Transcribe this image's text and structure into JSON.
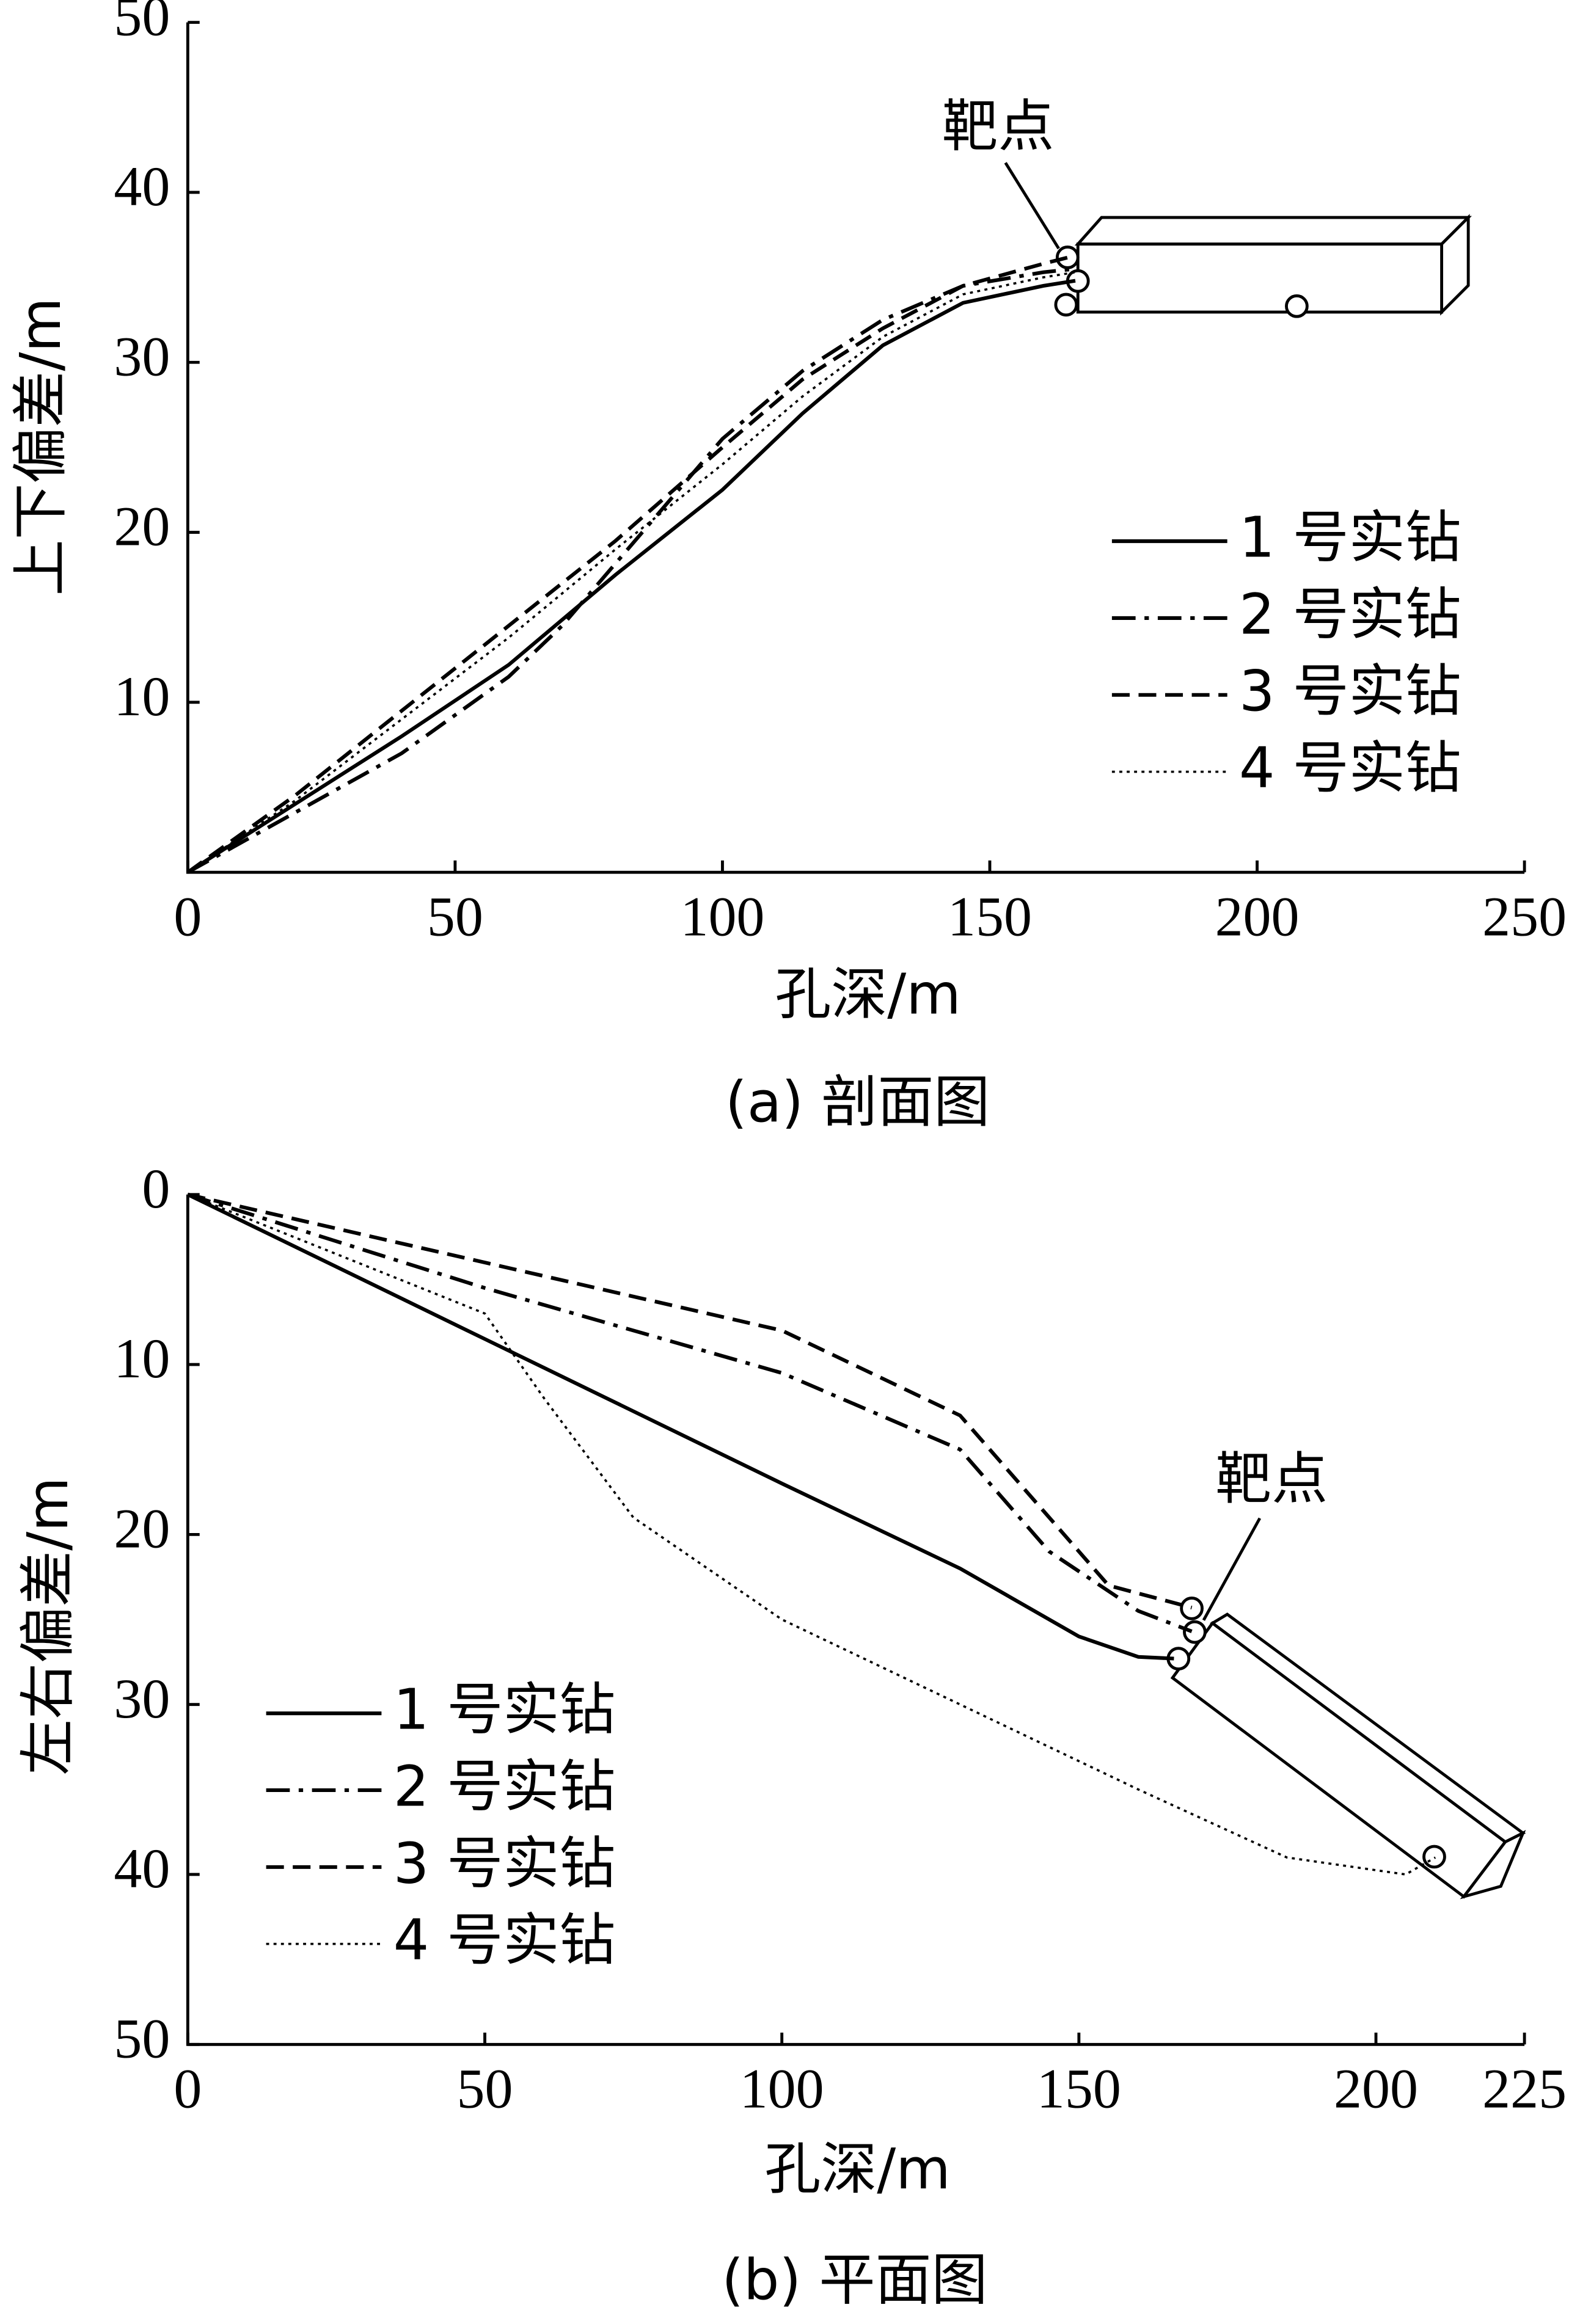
{
  "chart_data": [
    {
      "type": "line",
      "caption": "(a)  剖面图",
      "x_label": "孔深/m",
      "y_label": "上下偏差/m",
      "annotation": "靶点",
      "xlim": [
        0,
        250
      ],
      "xticks": [
        0,
        50,
        100,
        150,
        200,
        250
      ],
      "ylim": [
        0,
        50
      ],
      "yticks": [
        10,
        20,
        30,
        40,
        50
      ],
      "legend": "lower right",
      "series": [
        {
          "name": "1 号实钻",
          "color": "#000000",
          "style": "solid",
          "x": [
            0,
            20,
            40,
            60,
            80,
            100,
            115,
            130,
            145,
            160,
            166
          ],
          "values": [
            0,
            4,
            8,
            12.2,
            17.5,
            22.5,
            27,
            31,
            33.5,
            34.5,
            34.8
          ]
        },
        {
          "name": "2 号实钻",
          "color": "#000000",
          "style": "dashdot",
          "x": [
            0,
            20,
            40,
            60,
            70,
            85,
            100,
            115,
            130,
            145,
            160,
            166
          ],
          "values": [
            0,
            3.5,
            7,
            11.5,
            14.5,
            20,
            25.5,
            29.5,
            32.5,
            34.5,
            35.3,
            35.5
          ]
        },
        {
          "name": "3 号实钻",
          "color": "#000000",
          "style": "dashed",
          "x": [
            0,
            20,
            40,
            60,
            80,
            100,
            115,
            130,
            145,
            160,
            165
          ],
          "values": [
            0,
            4.5,
            9.5,
            14.5,
            19.5,
            25,
            29,
            32,
            34.5,
            35.8,
            36.2
          ]
        },
        {
          "name": "4 号实钻",
          "color": "#000000",
          "style": "dotted",
          "x": [
            0,
            20,
            40,
            60,
            80,
            100,
            115,
            130,
            145,
            160,
            166
          ],
          "values": [
            0,
            4.2,
            9,
            13.8,
            19,
            24,
            28,
            31.5,
            34,
            35,
            35.3
          ]
        }
      ]
    },
    {
      "type": "line",
      "caption": "(b)  平面图",
      "x_label": "孔深/m",
      "y_label": "左右偏差/m",
      "annotation": "靶点",
      "xlim": [
        0,
        225
      ],
      "xticks": [
        0,
        50,
        100,
        150,
        200,
        225
      ],
      "ylim": [
        50,
        0
      ],
      "yticks": [
        0,
        10,
        20,
        30,
        40,
        50
      ],
      "legend": "lower left",
      "series": [
        {
          "name": "1 号实钻",
          "color": "#000000",
          "style": "solid",
          "x": [
            0,
            50,
            100,
            130,
            150,
            160,
            166
          ],
          "values": [
            0,
            8.5,
            17,
            22,
            26,
            27.2,
            27.3
          ]
        },
        {
          "name": "2 号实钻",
          "color": "#000000",
          "style": "dashdot",
          "x": [
            0,
            50,
            100,
            130,
            145,
            160,
            169
          ],
          "values": [
            0,
            5.5,
            10.5,
            15,
            21,
            24.5,
            25.7
          ]
        },
        {
          "name": "3 号实钻",
          "color": "#000000",
          "style": "dashed",
          "x": [
            0,
            50,
            100,
            130,
            145,
            155,
            169
          ],
          "values": [
            0,
            4,
            8,
            13,
            19,
            23,
            24.3
          ]
        },
        {
          "name": "4 号实钻",
          "color": "#000000",
          "style": "dotted",
          "x": [
            0,
            50,
            60,
            75,
            100,
            130,
            160,
            185,
            205,
            210
          ],
          "values": [
            0,
            7,
            12,
            19,
            25,
            30,
            35,
            39,
            40,
            39
          ]
        }
      ]
    }
  ]
}
